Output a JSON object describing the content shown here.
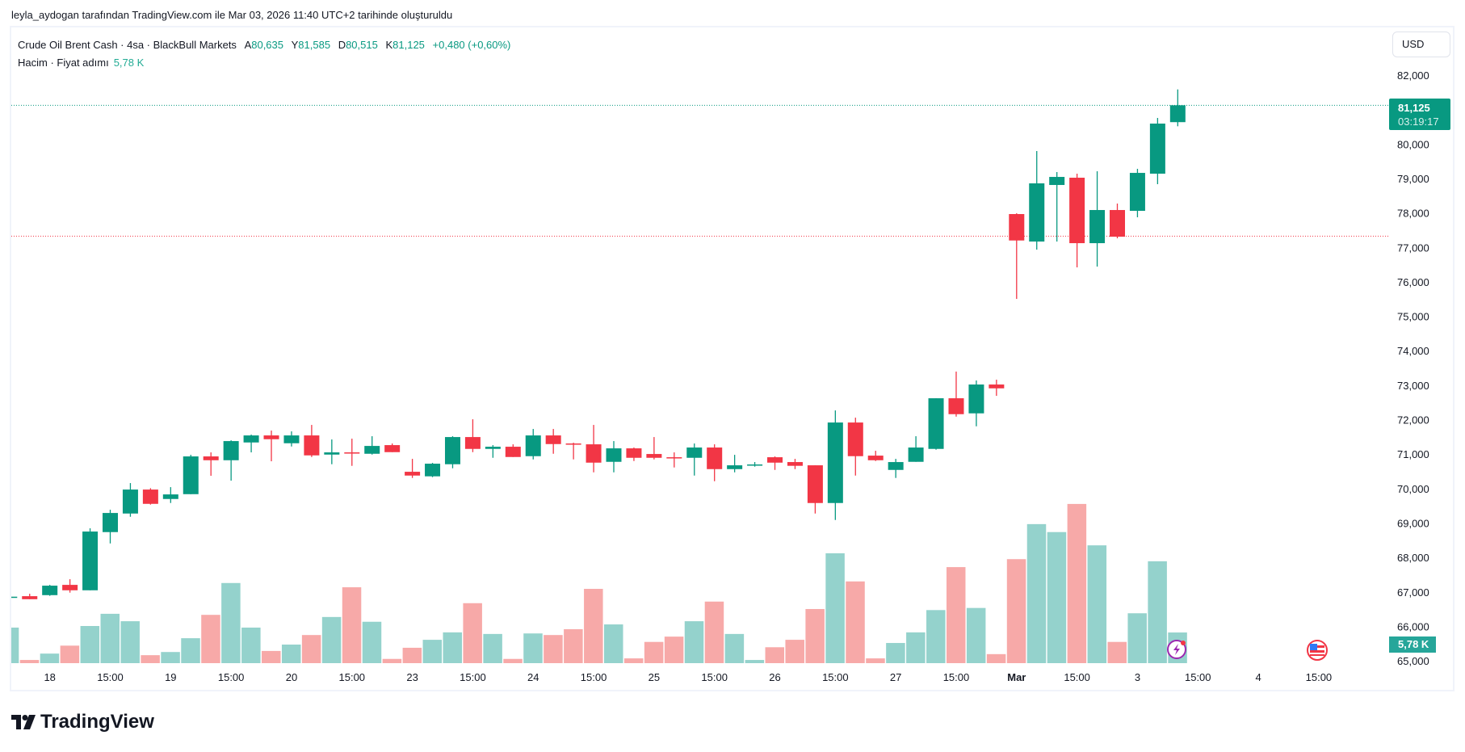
{
  "credit": "leyla_aydogan tarafından TradingView.com ile Mar 03, 2026 11:40 UTC+2 tarihinde oluşturuldu",
  "legend": {
    "symbol": "Crude Oil Brent Cash · 4sa · BlackBull Markets",
    "open_label": "A",
    "open": "80,635",
    "high_label": "Y",
    "high": "81,585",
    "low_label": "D",
    "low": "80,515",
    "close_label": "K",
    "close": "81,125",
    "change": "+0,480 (+0,60%)",
    "volume_label": "Hacim · Fiyat adımı",
    "volume_value": "5,78 K"
  },
  "currency_button": "USD",
  "price_badge": {
    "price": "81,125",
    "countdown": "03:19:17"
  },
  "volume_badge": "5,78 K",
  "brand": "TradingView",
  "colors": {
    "up": "#089981",
    "down": "#F23645",
    "vol_up": "#94D2CC",
    "vol_down": "#F7A9A8",
    "grid_text": "#131722"
  },
  "icons": {
    "event_icon": "lightning-icon",
    "country_icon": "us-flag-icon"
  },
  "chart_data": {
    "type": "candlestick",
    "title": "Crude Oil Brent Cash · 4sa · BlackBull Markets",
    "ylim": [
      65000,
      82000
    ],
    "y_ticks": [
      {
        "value": 82000,
        "label": "82,000"
      },
      {
        "value": 80000,
        "label": "80,000"
      },
      {
        "value": 79000,
        "label": "79,000"
      },
      {
        "value": 78000,
        "label": "78,000"
      },
      {
        "value": 77000,
        "label": "77,000"
      },
      {
        "value": 76000,
        "label": "76,000"
      },
      {
        "value": 75000,
        "label": "75,000"
      },
      {
        "value": 74000,
        "label": "74,000"
      },
      {
        "value": 73000,
        "label": "73,000"
      },
      {
        "value": 72000,
        "label": "72,000"
      },
      {
        "value": 71000,
        "label": "71,000"
      },
      {
        "value": 70000,
        "label": "70,000"
      },
      {
        "value": 69000,
        "label": "69,000"
      },
      {
        "value": 68000,
        "label": "68,000"
      },
      {
        "value": 67000,
        "label": "67,000"
      },
      {
        "value": 66000,
        "label": "66,000"
      },
      {
        "value": 65000,
        "label": "65,000"
      }
    ],
    "x_ticks": [
      {
        "bar": 2,
        "label": "18"
      },
      {
        "bar": 5,
        "label": "15:00"
      },
      {
        "bar": 8,
        "label": "19"
      },
      {
        "bar": 11,
        "label": "15:00"
      },
      {
        "bar": 14,
        "label": "20"
      },
      {
        "bar": 17,
        "label": "15:00"
      },
      {
        "bar": 20,
        "label": "23"
      },
      {
        "bar": 23,
        "label": "15:00"
      },
      {
        "bar": 26,
        "label": "24"
      },
      {
        "bar": 29,
        "label": "15:00"
      },
      {
        "bar": 32,
        "label": "25"
      },
      {
        "bar": 35,
        "label": "15:00"
      },
      {
        "bar": 38,
        "label": "26"
      },
      {
        "bar": 41,
        "label": "15:00"
      },
      {
        "bar": 44,
        "label": "27"
      },
      {
        "bar": 47,
        "label": "15:00"
      },
      {
        "bar": 50,
        "label": "Mar",
        "bold": true
      },
      {
        "bar": 53,
        "label": "15:00"
      },
      {
        "bar": 56,
        "label": "3"
      },
      {
        "bar": 59,
        "label": "15:00"
      },
      {
        "bar": 62,
        "label": "4"
      },
      {
        "bar": 65,
        "label": "15:00"
      }
    ],
    "last_price": 81125,
    "ref_line": 77326,
    "volume_unit": "K",
    "candles_ohlcv": [
      [
        66830,
        66870,
        66820,
        66860,
        6.7
      ],
      [
        66875,
        66945,
        66787,
        66787,
        0.6
      ],
      [
        66905,
        67203,
        66885,
        67180,
        1.8
      ],
      [
        67203,
        67367,
        66978,
        67046,
        3.3
      ],
      [
        67046,
        68845,
        67046,
        68751,
        7.0
      ],
      [
        68735,
        69384,
        68406,
        69290,
        9.3
      ],
      [
        69274,
        70158,
        69180,
        69970,
        7.9
      ],
      [
        69970,
        70010,
        69533,
        69555,
        1.5
      ],
      [
        69696,
        70040,
        69580,
        69829,
        2.1
      ],
      [
        69836,
        70978,
        69836,
        70932,
        4.7
      ],
      [
        70932,
        71049,
        70369,
        70821,
        9.1
      ],
      [
        70821,
        71400,
        70228,
        71377,
        15.1
      ],
      [
        71337,
        71565,
        71049,
        71541,
        6.7
      ],
      [
        71541,
        71682,
        70791,
        71431,
        2.3
      ],
      [
        71314,
        71659,
        71220,
        71541,
        3.5
      ],
      [
        71541,
        71846,
        70915,
        70962,
        5.3
      ],
      [
        70985,
        71424,
        70705,
        71049,
        8.7
      ],
      [
        71049,
        71447,
        70658,
        71030,
        14.3
      ],
      [
        71009,
        71518,
        70985,
        71236,
        7.8
      ],
      [
        71260,
        71307,
        71056,
        71056,
        0.8
      ],
      [
        70486,
        70861,
        70307,
        70376,
        2.9
      ],
      [
        70354,
        70744,
        70330,
        70721,
        4.4
      ],
      [
        70705,
        71518,
        70588,
        71494,
        5.8
      ],
      [
        71494,
        72010,
        71056,
        71150,
        11.3
      ],
      [
        71150,
        71260,
        70892,
        71213,
        5.5
      ],
      [
        71213,
        71283,
        70915,
        70915,
        0.8
      ],
      [
        70939,
        71729,
        70845,
        71541,
        5.6
      ],
      [
        71541,
        71729,
        71009,
        71290,
        5.3
      ],
      [
        71307,
        71330,
        70845,
        71290,
        6.4
      ],
      [
        71283,
        71846,
        70470,
        70751,
        14.0
      ],
      [
        70775,
        71377,
        70470,
        71166,
        7.3
      ],
      [
        71166,
        71190,
        70798,
        70892,
        0.9
      ],
      [
        71002,
        71494,
        70845,
        70892,
        4.0
      ],
      [
        70908,
        71049,
        70611,
        70892,
        5.0
      ],
      [
        70892,
        71307,
        70376,
        71190,
        7.9
      ],
      [
        71190,
        71283,
        70212,
        70563,
        11.6
      ],
      [
        70563,
        70978,
        70470,
        70674,
        5.5
      ],
      [
        70682,
        70768,
        70635,
        70698,
        0.6
      ],
      [
        70908,
        70932,
        70540,
        70751,
        3.0
      ],
      [
        70768,
        70861,
        70563,
        70659,
        4.4
      ],
      [
        70674,
        70674,
        69274,
        69579,
        10.2
      ],
      [
        69579,
        72268,
        69086,
        71916,
        20.7
      ],
      [
        71916,
        72057,
        70376,
        70939,
        15.4
      ],
      [
        70955,
        71096,
        70798,
        70821,
        0.9
      ],
      [
        70540,
        70861,
        70307,
        70768,
        3.8
      ],
      [
        70775,
        71518,
        70775,
        71190,
        5.8
      ],
      [
        71150,
        72620,
        71127,
        72620,
        10.0
      ],
      [
        72620,
        73394,
        72087,
        72158,
        18.1
      ],
      [
        72182,
        73136,
        71806,
        73019,
        10.4
      ],
      [
        73019,
        73159,
        72690,
        72908,
        1.7
      ],
      [
        77967,
        77990,
        75504,
        77200,
        19.6
      ],
      [
        77169,
        79796,
        76935,
        78858,
        26.2
      ],
      [
        78811,
        79186,
        77169,
        79045,
        24.7
      ],
      [
        79022,
        79139,
        76419,
        77122,
        30.0
      ],
      [
        77122,
        79209,
        76442,
        78084,
        22.2
      ],
      [
        78084,
        78272,
        77263,
        77310,
        4.0
      ],
      [
        78060,
        79280,
        77873,
        79162,
        9.4
      ],
      [
        79139,
        80757,
        78834,
        80593,
        19.2
      ],
      [
        80635,
        81585,
        80515,
        81125,
        5.78
      ]
    ]
  }
}
